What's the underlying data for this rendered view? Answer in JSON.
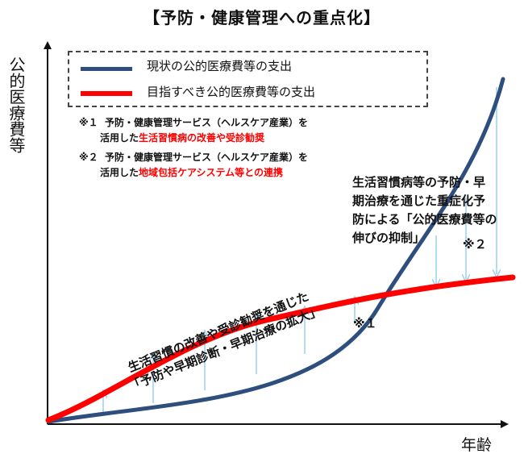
{
  "title": "【予防・健康管理への重点化】",
  "y_axis_label": "公的医療費等",
  "x_axis_label": "年齢",
  "colors": {
    "current": "#2e4f7e",
    "target": "#ff0000",
    "arrow": "#9ed3ee",
    "axis": "#111111"
  },
  "legend": {
    "current": "現状の公的医療費等の支出",
    "target": "目指すべき公的医療費等の支出"
  },
  "notes": {
    "n1_mark": "※１",
    "n1_line1": "予防・健康管理サービス（ヘルスケア産業）を",
    "n1_prefix": "活用した",
    "n1_red": "生活習慣病の改善や受診勧奨",
    "n2_mark": "※２",
    "n2_line1": "予防・健康管理サービス（ヘルスケア産業）を",
    "n2_prefix": "活用した",
    "n2_red": "地域包括ケアシステム等との連携"
  },
  "label_right": {
    "line1": "生活習慣病等の予防・早",
    "line2": "期治療を通じた重症化予",
    "line3": "防による「公的医療費等の",
    "line4": "伸びの抑制」",
    "mark": "※２"
  },
  "label_bottom": {
    "line1": "生活習慣の改善や受診勧奨を通じた",
    "line2": "「予防や早期診断・早期治療の拡大」",
    "mark": "※１"
  }
}
